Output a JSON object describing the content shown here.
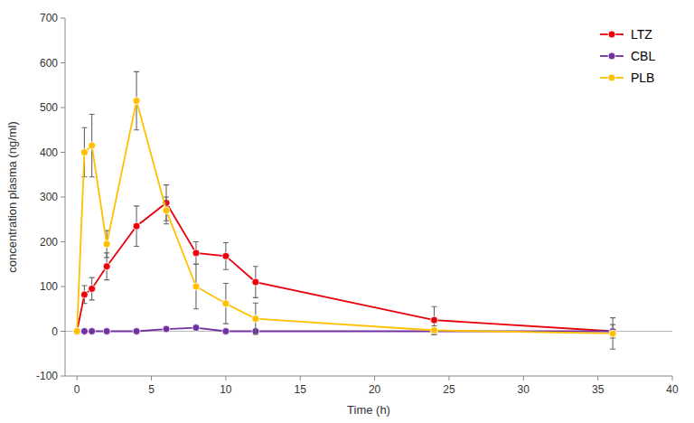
{
  "chart_data": {
    "type": "line",
    "xlabel": "Time (h)",
    "ylabel": "concentration plasma (ng/ml)",
    "x": [
      0,
      0.5,
      1,
      2,
      4,
      6,
      8,
      10,
      12,
      24,
      36
    ],
    "series": [
      {
        "name": "LTZ",
        "color": "#e8000b",
        "marker": "circle",
        "values": [
          0,
          82,
          95,
          145,
          235,
          287,
          175,
          168,
          110,
          25,
          0
        ],
        "errors": [
          0,
          20,
          25,
          30,
          45,
          40,
          25,
          30,
          35,
          30,
          15
        ]
      },
      {
        "name": "CBL",
        "color": "#7030a0",
        "marker": "circle",
        "values": [
          0,
          0,
          0,
          0,
          0,
          5,
          8,
          0,
          0,
          0,
          0
        ],
        "errors": [
          0,
          2,
          2,
          2,
          2,
          3,
          3,
          2,
          2,
          2,
          2
        ]
      },
      {
        "name": "PLB",
        "color": "#ffc000",
        "marker": "circle",
        "values": [
          0,
          400,
          415,
          195,
          515,
          270,
          100,
          62,
          28,
          2,
          -5
        ],
        "errors": [
          0,
          55,
          70,
          30,
          65,
          30,
          50,
          45,
          35,
          10,
          35
        ]
      }
    ],
    "xlim": [
      -0.8,
      40
    ],
    "ylim": [
      -100,
      700
    ],
    "xticks": [
      0,
      5,
      10,
      15,
      20,
      25,
      30,
      35,
      40
    ],
    "yticks": [
      -100,
      0,
      100,
      200,
      300,
      400,
      500,
      600,
      700
    ],
    "grid": false,
    "legend": "upper right"
  }
}
